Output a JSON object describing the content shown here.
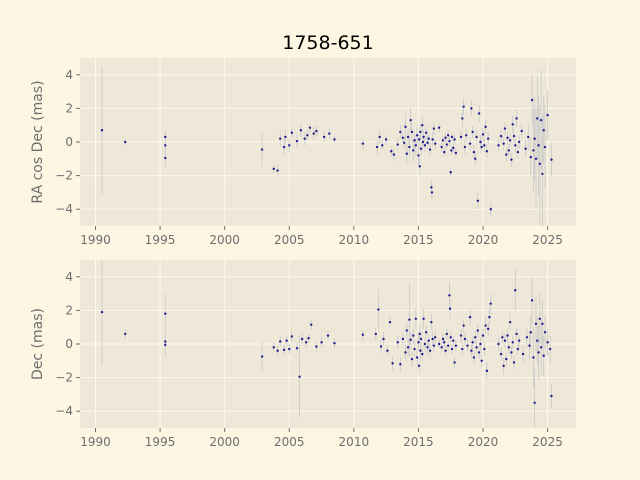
{
  "chart_data": [
    {
      "type": "scatter",
      "title": "1758-651",
      "xlabel": "",
      "ylabel": "RA cos Dec (mas)",
      "xlim": [
        1988.8,
        2027.2
      ],
      "ylim": [
        -5,
        5
      ],
      "xticks": [
        1990,
        1995,
        2000,
        2005,
        2010,
        2015,
        2020,
        2025
      ],
      "yticks": [
        -4,
        -2,
        0,
        2,
        4
      ],
      "grid": true,
      "colors": {
        "marker": "#1f1f8f",
        "errorbar": "#c8c8c8",
        "axes_bg": "#efe8d8",
        "grid": "#fdf9ee"
      },
      "points": [
        [
          1990.5,
          0.7,
          3.8
        ],
        [
          1992.3,
          0.0,
          0.2
        ],
        [
          1995.4,
          0.3,
          0.4
        ],
        [
          1995.4,
          -0.2,
          0.4
        ],
        [
          1995.4,
          -0.95,
          0.6
        ],
        [
          2002.9,
          -0.45,
          1.0
        ],
        [
          2003.8,
          -1.6,
          0.3
        ],
        [
          2004.1,
          -1.7,
          0.4
        ],
        [
          2004.3,
          0.2,
          0.5
        ],
        [
          2004.6,
          -0.3,
          0.5
        ],
        [
          2004.7,
          0.3,
          0.4
        ],
        [
          2005.0,
          -0.2,
          0.4
        ],
        [
          2005.2,
          0.55,
          0.3
        ],
        [
          2005.6,
          0.05,
          0.4
        ],
        [
          2005.9,
          0.7,
          0.4
        ],
        [
          2006.2,
          0.2,
          0.4
        ],
        [
          2006.4,
          0.4,
          0.3
        ],
        [
          2006.6,
          0.85,
          0.3
        ],
        [
          2006.9,
          0.5,
          0.4
        ],
        [
          2007.1,
          0.65,
          0.3
        ],
        [
          2007.7,
          0.3,
          0.3
        ],
        [
          2008.1,
          0.5,
          0.3
        ],
        [
          2008.5,
          0.15,
          0.2
        ],
        [
          2010.7,
          -0.1,
          0.3
        ],
        [
          2011.8,
          -0.3,
          0.4
        ],
        [
          2012.0,
          0.3,
          0.4
        ],
        [
          2012.2,
          -0.2,
          0.3
        ],
        [
          2012.5,
          0.15,
          0.3
        ],
        [
          2012.9,
          -0.55,
          0.3
        ],
        [
          2013.1,
          -0.75,
          0.4
        ],
        [
          2013.4,
          -0.15,
          0.4
        ],
        [
          2013.6,
          0.6,
          0.4
        ],
        [
          2013.8,
          0.25,
          0.3
        ],
        [
          2013.9,
          -0.05,
          0.4
        ],
        [
          2014.0,
          0.9,
          0.8
        ],
        [
          2014.1,
          -0.7,
          0.6
        ],
        [
          2014.2,
          0.3,
          0.5
        ],
        [
          2014.3,
          -0.3,
          0.6
        ],
        [
          2014.4,
          1.3,
          0.8
        ],
        [
          2014.5,
          0.6,
          0.6
        ],
        [
          2014.6,
          -0.5,
          0.7
        ],
        [
          2014.7,
          0.1,
          0.5
        ],
        [
          2014.8,
          -0.2,
          0.6
        ],
        [
          2014.9,
          0.4,
          0.5
        ],
        [
          2015.0,
          -0.8,
          0.6
        ],
        [
          2015.05,
          0.15,
          0.5
        ],
        [
          2015.1,
          -1.45,
          0.5
        ],
        [
          2015.15,
          0.6,
          0.5
        ],
        [
          2015.2,
          -0.4,
          0.4
        ],
        [
          2015.3,
          1.0,
          0.5
        ],
        [
          2015.35,
          0.0,
          0.4
        ],
        [
          2015.4,
          0.3,
          0.4
        ],
        [
          2015.5,
          -0.2,
          0.4
        ],
        [
          2015.6,
          0.55,
          0.4
        ],
        [
          2015.7,
          -0.05,
          0.4
        ],
        [
          2015.8,
          0.2,
          0.3
        ],
        [
          2015.9,
          -0.45,
          0.4
        ],
        [
          2016.0,
          -2.7,
          0.4
        ],
        [
          2016.05,
          -3.0,
          0.4
        ],
        [
          2016.1,
          0.15,
          0.4
        ],
        [
          2016.2,
          0.8,
          0.4
        ],
        [
          2016.3,
          -0.1,
          0.3
        ],
        [
          2016.6,
          0.85,
          0.3
        ],
        [
          2016.8,
          -0.3,
          0.3
        ],
        [
          2016.9,
          0.1,
          0.3
        ],
        [
          2017.0,
          -0.6,
          0.3
        ],
        [
          2017.1,
          0.25,
          0.3
        ],
        [
          2017.2,
          -0.15,
          0.3
        ],
        [
          2017.3,
          0.4,
          0.3
        ],
        [
          2017.4,
          0.05,
          0.3
        ],
        [
          2017.5,
          -1.8,
          0.3
        ],
        [
          2017.55,
          -0.5,
          0.3
        ],
        [
          2017.6,
          0.3,
          0.3
        ],
        [
          2017.7,
          -0.35,
          0.3
        ],
        [
          2017.8,
          0.15,
          0.3
        ],
        [
          2017.9,
          -0.65,
          0.3
        ],
        [
          2018.3,
          0.3,
          0.4
        ],
        [
          2018.4,
          1.4,
          0.5
        ],
        [
          2018.5,
          2.1,
          0.5
        ],
        [
          2018.6,
          -0.3,
          0.4
        ],
        [
          2018.7,
          0.4,
          0.4
        ],
        [
          2019.0,
          -0.1,
          0.4
        ],
        [
          2019.1,
          2.0,
          0.5
        ],
        [
          2019.2,
          0.6,
          0.4
        ],
        [
          2019.3,
          -0.6,
          0.4
        ],
        [
          2019.4,
          -1.0,
          0.4
        ],
        [
          2019.5,
          0.3,
          0.4
        ],
        [
          2019.6,
          -3.5,
          0.5
        ],
        [
          2019.7,
          1.7,
          0.5
        ],
        [
          2019.8,
          0.0,
          0.4
        ],
        [
          2019.9,
          -0.3,
          0.4
        ],
        [
          2020.0,
          0.45,
          0.4
        ],
        [
          2020.1,
          -0.2,
          0.4
        ],
        [
          2020.2,
          0.9,
          0.4
        ],
        [
          2020.3,
          -0.55,
          0.4
        ],
        [
          2020.4,
          0.2,
          0.4
        ],
        [
          2020.6,
          -4.0,
          0.4
        ],
        [
          2021.2,
          -0.2,
          0.4
        ],
        [
          2021.4,
          0.35,
          0.4
        ],
        [
          2021.6,
          -0.1,
          0.4
        ],
        [
          2021.7,
          0.8,
          0.4
        ],
        [
          2021.8,
          -0.75,
          0.4
        ],
        [
          2021.9,
          0.25,
          0.4
        ],
        [
          2022.0,
          -0.5,
          0.4
        ],
        [
          2022.1,
          0.1,
          0.4
        ],
        [
          2022.2,
          -1.05,
          0.4
        ],
        [
          2022.3,
          1.05,
          0.5
        ],
        [
          2022.4,
          0.35,
          0.4
        ],
        [
          2022.5,
          -0.2,
          0.4
        ],
        [
          2022.6,
          1.4,
          0.5
        ],
        [
          2022.7,
          -0.6,
          0.4
        ],
        [
          2022.8,
          0.0,
          0.4
        ],
        [
          2023.0,
          0.65,
          0.4
        ],
        [
          2023.3,
          -0.4,
          0.5
        ],
        [
          2023.5,
          0.3,
          0.8
        ],
        [
          2023.7,
          -0.9,
          1.2
        ],
        [
          2023.8,
          2.5,
          1.5
        ],
        [
          2023.9,
          -0.5,
          2.5
        ],
        [
          2024.0,
          0.2,
          2.5
        ],
        [
          2024.1,
          -1.0,
          3.0
        ],
        [
          2024.2,
          1.4,
          2.5
        ],
        [
          2024.3,
          -0.2,
          3.0
        ],
        [
          2024.4,
          -1.3,
          3.5
        ],
        [
          2024.5,
          1.3,
          3.0
        ],
        [
          2024.6,
          -1.9,
          3.5
        ],
        [
          2024.7,
          0.7,
          2.0
        ],
        [
          2024.8,
          -0.3,
          2.5
        ],
        [
          2025.0,
          1.6,
          1.5
        ],
        [
          2025.3,
          -1.05,
          1.0
        ]
      ]
    },
    {
      "type": "scatter",
      "title": "",
      "xlabel": "",
      "ylabel": "Dec (mas)",
      "xlim": [
        1988.8,
        2027.2
      ],
      "ylim": [
        -5,
        5
      ],
      "xticks": [
        1990,
        1995,
        2000,
        2005,
        2010,
        2015,
        2020,
        2025
      ],
      "yticks": [
        -4,
        -2,
        0,
        2,
        4
      ],
      "grid": true,
      "colors": {
        "marker": "#1f1f8f",
        "errorbar": "#c8c8c8",
        "axes_bg": "#efe8d8",
        "grid": "#fdf9ee"
      },
      "points": [
        [
          1990.5,
          1.9,
          3.2
        ],
        [
          1992.3,
          0.6,
          0.3
        ],
        [
          1995.4,
          1.8,
          1.2
        ],
        [
          1995.4,
          0.15,
          0.4
        ],
        [
          1995.4,
          -0.05,
          0.7
        ],
        [
          2002.9,
          -0.75,
          0.9
        ],
        [
          2003.8,
          -0.2,
          0.3
        ],
        [
          2004.1,
          -0.4,
          0.3
        ],
        [
          2004.3,
          0.15,
          0.3
        ],
        [
          2004.6,
          -0.35,
          0.3
        ],
        [
          2004.8,
          0.2,
          0.3
        ],
        [
          2005.0,
          -0.3,
          0.3
        ],
        [
          2005.2,
          0.45,
          0.3
        ],
        [
          2005.6,
          -0.25,
          0.3
        ],
        [
          2005.8,
          -1.95,
          2.4
        ],
        [
          2006.0,
          0.3,
          0.3
        ],
        [
          2006.3,
          0.1,
          0.3
        ],
        [
          2006.5,
          0.35,
          0.3
        ],
        [
          2006.7,
          1.15,
          0.3
        ],
        [
          2007.1,
          -0.15,
          0.3
        ],
        [
          2007.5,
          0.1,
          0.3
        ],
        [
          2008.0,
          0.5,
          0.3
        ],
        [
          2008.5,
          0.05,
          0.3
        ],
        [
          2010.7,
          0.55,
          0.3
        ],
        [
          2011.7,
          0.6,
          0.4
        ],
        [
          2011.9,
          2.05,
          1.2
        ],
        [
          2012.1,
          -0.15,
          0.4
        ],
        [
          2012.3,
          0.3,
          0.4
        ],
        [
          2012.6,
          -0.4,
          0.3
        ],
        [
          2012.8,
          1.3,
          0.4
        ],
        [
          2013.0,
          -1.15,
          0.4
        ],
        [
          2013.4,
          0.1,
          0.4
        ],
        [
          2013.6,
          -1.2,
          0.4
        ],
        [
          2013.8,
          0.3,
          0.4
        ],
        [
          2014.0,
          -0.5,
          0.5
        ],
        [
          2014.1,
          0.8,
          0.5
        ],
        [
          2014.2,
          -0.2,
          0.5
        ],
        [
          2014.3,
          1.45,
          2.2
        ],
        [
          2014.4,
          0.25,
          0.5
        ],
        [
          2014.5,
          -0.9,
          0.5
        ],
        [
          2014.6,
          0.5,
          0.5
        ],
        [
          2014.7,
          -0.3,
          0.5
        ],
        [
          2014.8,
          1.5,
          0.6
        ],
        [
          2014.9,
          -0.8,
          0.5
        ],
        [
          2015.0,
          0.1,
          0.5
        ],
        [
          2015.05,
          -1.3,
          0.5
        ],
        [
          2015.1,
          0.6,
          0.5
        ],
        [
          2015.15,
          -0.4,
          0.5
        ],
        [
          2015.2,
          0.3,
          0.4
        ],
        [
          2015.3,
          -0.6,
          0.4
        ],
        [
          2015.4,
          1.5,
          0.6
        ],
        [
          2015.5,
          0.0,
          0.4
        ],
        [
          2015.6,
          0.7,
          0.4
        ],
        [
          2015.7,
          -0.2,
          0.4
        ],
        [
          2015.8,
          0.2,
          0.4
        ],
        [
          2015.9,
          -0.4,
          0.4
        ],
        [
          2016.0,
          1.3,
          0.5
        ],
        [
          2016.1,
          0.3,
          0.4
        ],
        [
          2016.2,
          -0.1,
          0.4
        ],
        [
          2016.3,
          0.4,
          0.4
        ],
        [
          2016.6,
          0.0,
          0.3
        ],
        [
          2016.8,
          -0.2,
          0.3
        ],
        [
          2016.9,
          0.3,
          0.3
        ],
        [
          2017.0,
          0.1,
          0.3
        ],
        [
          2017.1,
          -0.4,
          0.3
        ],
        [
          2017.2,
          0.6,
          0.3
        ],
        [
          2017.3,
          -0.1,
          0.3
        ],
        [
          2017.4,
          2.9,
          0.8
        ],
        [
          2017.45,
          2.1,
          0.6
        ],
        [
          2017.5,
          0.4,
          0.3
        ],
        [
          2017.6,
          -0.3,
          0.3
        ],
        [
          2017.7,
          0.2,
          0.3
        ],
        [
          2017.8,
          -1.1,
          0.3
        ],
        [
          2017.9,
          -0.1,
          0.3
        ],
        [
          2018.3,
          0.5,
          0.4
        ],
        [
          2018.4,
          -0.3,
          0.4
        ],
        [
          2018.5,
          1.1,
          0.4
        ],
        [
          2018.6,
          0.3,
          0.4
        ],
        [
          2018.8,
          -0.1,
          0.4
        ],
        [
          2019.0,
          1.6,
          0.5
        ],
        [
          2019.1,
          -0.4,
          0.4
        ],
        [
          2019.2,
          0.1,
          0.4
        ],
        [
          2019.3,
          -0.8,
          0.4
        ],
        [
          2019.4,
          0.4,
          0.4
        ],
        [
          2019.5,
          -0.2,
          0.4
        ],
        [
          2019.6,
          0.8,
          0.4
        ],
        [
          2019.7,
          -0.5,
          0.4
        ],
        [
          2019.8,
          0.0,
          0.4
        ],
        [
          2019.9,
          -1.0,
          0.4
        ],
        [
          2020.0,
          0.5,
          0.4
        ],
        [
          2020.1,
          -0.3,
          0.4
        ],
        [
          2020.2,
          1.1,
          0.5
        ],
        [
          2020.3,
          -1.6,
          0.5
        ],
        [
          2020.4,
          0.9,
          0.4
        ],
        [
          2020.5,
          1.6,
          0.5
        ],
        [
          2020.6,
          2.4,
          0.6
        ],
        [
          2021.2,
          0.0,
          0.4
        ],
        [
          2021.4,
          -0.6,
          0.4
        ],
        [
          2021.5,
          0.4,
          0.4
        ],
        [
          2021.6,
          -1.3,
          0.5
        ],
        [
          2021.7,
          0.2,
          0.4
        ],
        [
          2021.8,
          -0.9,
          0.4
        ],
        [
          2021.9,
          0.5,
          0.4
        ],
        [
          2022.0,
          -0.2,
          0.4
        ],
        [
          2022.1,
          1.3,
          0.5
        ],
        [
          2022.2,
          -0.5,
          0.4
        ],
        [
          2022.3,
          0.1,
          0.4
        ],
        [
          2022.4,
          -1.1,
          0.4
        ],
        [
          2022.5,
          3.2,
          1.2
        ],
        [
          2022.6,
          0.6,
          0.4
        ],
        [
          2022.7,
          -0.3,
          0.4
        ],
        [
          2022.8,
          0.2,
          0.4
        ],
        [
          2023.1,
          -0.6,
          0.5
        ],
        [
          2023.4,
          0.4,
          0.6
        ],
        [
          2023.6,
          -0.1,
          0.8
        ],
        [
          2023.7,
          0.7,
          1.0
        ],
        [
          2023.8,
          2.6,
          1.4
        ],
        [
          2023.9,
          -0.8,
          1.8
        ],
        [
          2024.0,
          -3.5,
          2.0
        ],
        [
          2024.1,
          1.2,
          1.6
        ],
        [
          2024.2,
          0.2,
          1.4
        ],
        [
          2024.3,
          -0.5,
          1.6
        ],
        [
          2024.4,
          1.5,
          1.5
        ],
        [
          2024.5,
          -0.2,
          1.6
        ],
        [
          2024.6,
          1.2,
          1.4
        ],
        [
          2024.7,
          -0.7,
          1.2
        ],
        [
          2024.8,
          0.7,
          1.0
        ],
        [
          2025.0,
          0.1,
          0.8
        ],
        [
          2025.2,
          -0.3,
          0.8
        ],
        [
          2025.3,
          -3.1,
          0.7
        ]
      ]
    }
  ]
}
